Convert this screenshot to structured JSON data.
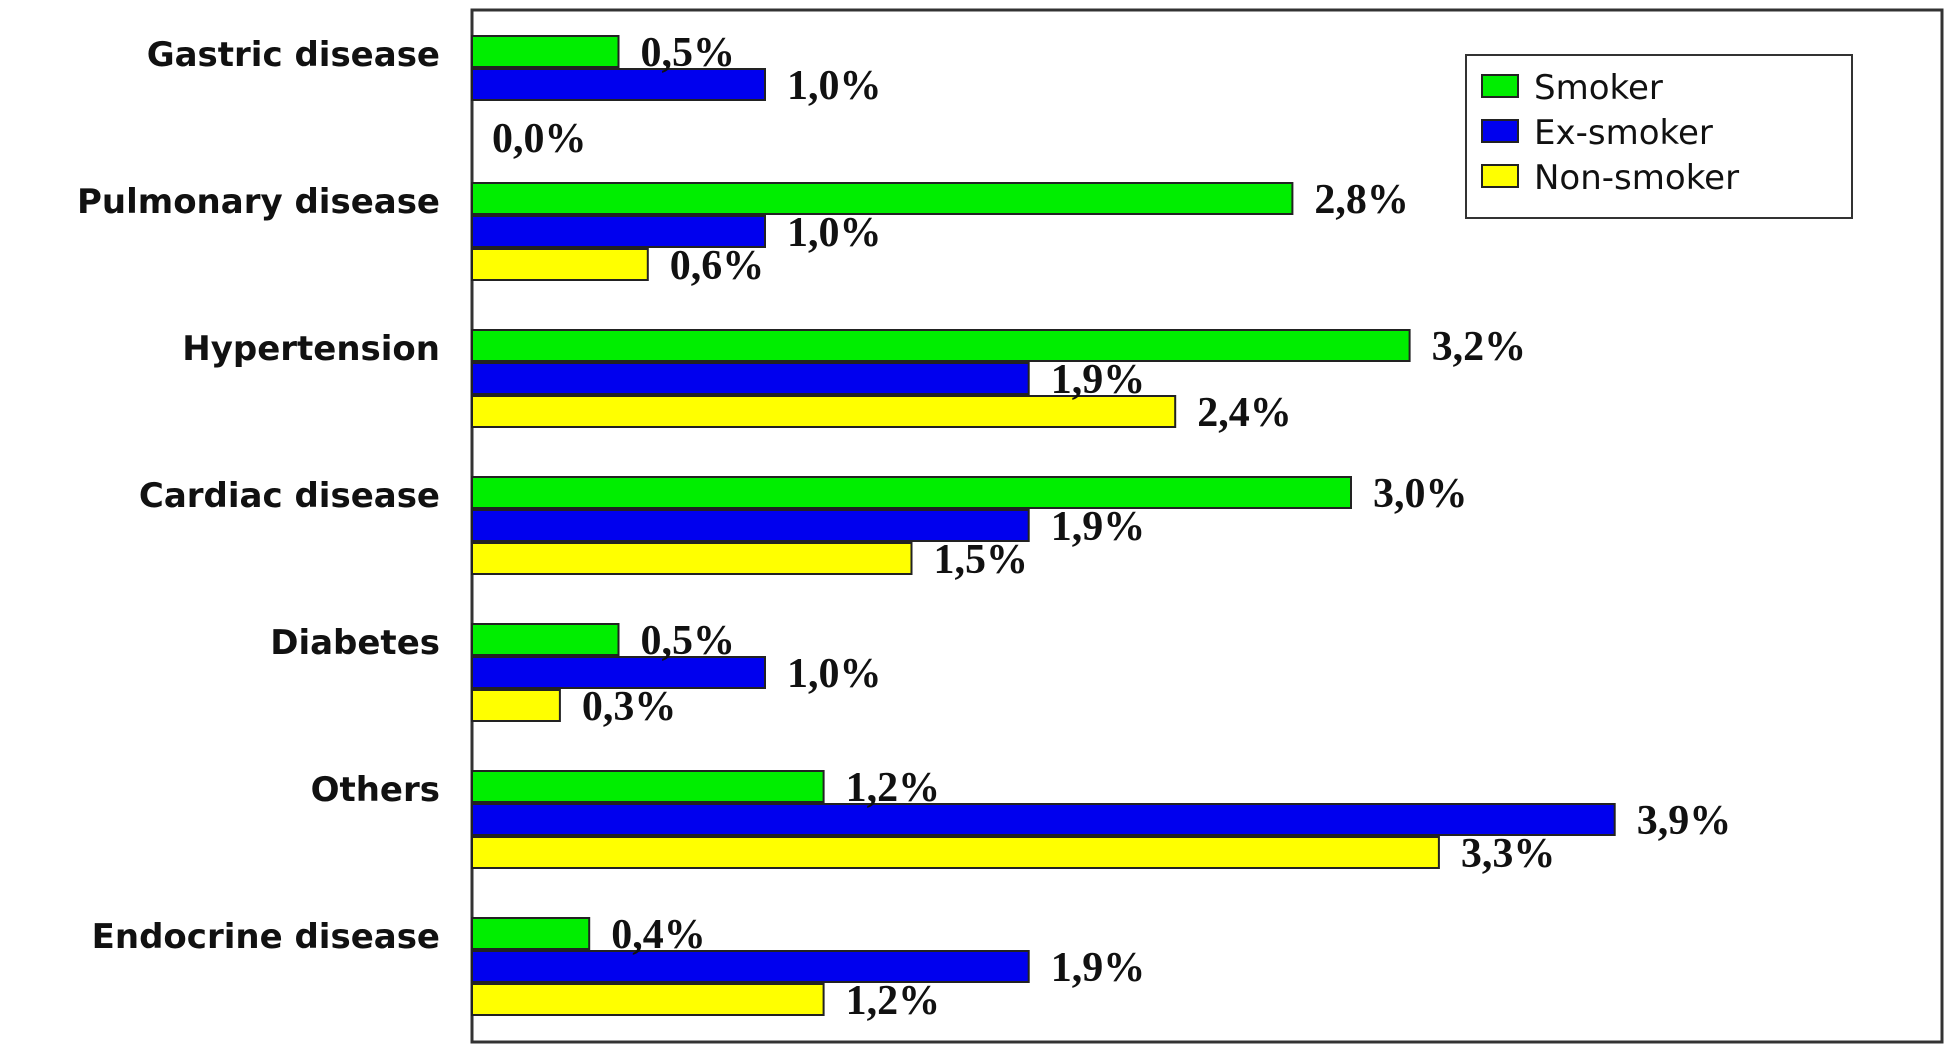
{
  "chart_data": {
    "type": "bar",
    "orientation": "horizontal",
    "categories": [
      "Gastric disease",
      "Pulmonary disease",
      "Hypertension",
      "Cardiac disease",
      "Diabetes",
      "Others",
      "Endocrine disease"
    ],
    "series": [
      {
        "name": "Smoker",
        "color": "#00ee00",
        "values": [
          0.5,
          2.8,
          3.2,
          3.0,
          0.5,
          1.2,
          0.4
        ],
        "labels": [
          "0,5%",
          "2,8%",
          "3,2%",
          "3,0%",
          "0,5%",
          "1,2%",
          "0,4%"
        ]
      },
      {
        "name": "Ex-smoker",
        "color": "#0000ee",
        "values": [
          1.0,
          1.0,
          1.9,
          1.9,
          1.0,
          3.9,
          1.9
        ],
        "labels": [
          "1,0%",
          "1,0%",
          "1,9%",
          "1,9%",
          "1,0%",
          "3,9%",
          "1,9%"
        ]
      },
      {
        "name": "Non-smoker",
        "color": "#ffff00",
        "values": [
          0.0,
          0.6,
          2.4,
          1.5,
          0.3,
          3.3,
          1.2
        ],
        "labels": [
          "0,0%",
          "0,6%",
          "2,4%",
          "1,5%",
          "0,3%",
          "3,3%",
          "1,2%"
        ]
      }
    ],
    "xlim": [
      0,
      6.5
    ],
    "grid": false,
    "legend": "top-right",
    "title": "",
    "xlabel": "",
    "ylabel": ""
  }
}
